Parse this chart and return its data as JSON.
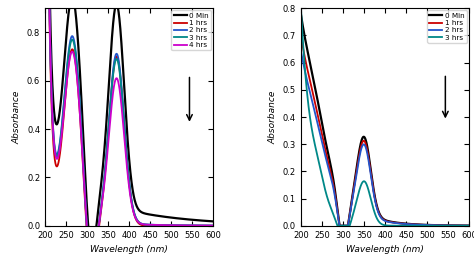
{
  "chart1": {
    "xlabel": "Wavelength (nm)",
    "ylabel": "Absorbance",
    "xlim": [
      200,
      600
    ],
    "ylim": [
      0.0,
      0.9
    ],
    "yticks": [
      0.0,
      0.2,
      0.4,
      0.6,
      0.8
    ],
    "xticks": [
      200,
      250,
      300,
      350,
      400,
      450,
      500,
      550,
      600
    ],
    "legend_labels": [
      "0 Min",
      "1 hrs",
      "2 hrs",
      "3 hrs",
      "4 hrs"
    ],
    "colors": [
      "black",
      "#cc0000",
      "#2255cc",
      "#008888",
      "#cc00cc"
    ],
    "linewidths": [
      1.6,
      1.3,
      1.3,
      1.3,
      1.3
    ]
  },
  "chart2": {
    "xlabel": "Wavelength (nm)",
    "ylabel": "Absorbance",
    "xlim": [
      200,
      600
    ],
    "ylim": [
      0.0,
      0.8
    ],
    "yticks": [
      0.0,
      0.1,
      0.2,
      0.3,
      0.4,
      0.5,
      0.6,
      0.7,
      0.8
    ],
    "xticks": [
      200,
      250,
      300,
      350,
      400,
      450,
      500,
      550,
      600
    ],
    "legend_labels": [
      "0 Min",
      "1 hrs",
      "2 hrs",
      "3 hrs"
    ],
    "colors": [
      "black",
      "#cc0000",
      "#2255cc",
      "#008888"
    ],
    "linewidths": [
      1.6,
      1.3,
      1.3,
      1.3
    ]
  }
}
